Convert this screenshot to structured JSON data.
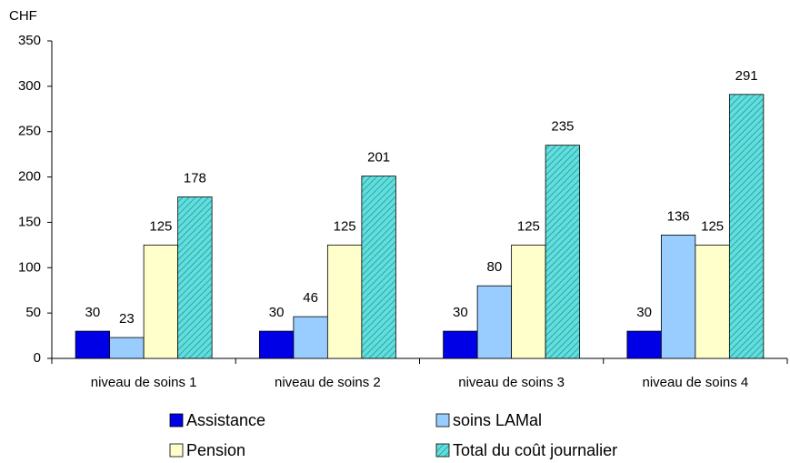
{
  "chart_data": {
    "type": "bar",
    "y_label": "CHF",
    "categories": [
      "niveau de soins 1",
      "niveau de soins 2",
      "niveau de soins 3",
      "niveau de soins 4"
    ],
    "series": [
      {
        "name": "Assistance",
        "color": "#0000e6",
        "values": [
          30,
          30,
          30,
          30
        ]
      },
      {
        "name": "soins LAMal",
        "color": "#99ccff",
        "values": [
          23,
          46,
          80,
          136
        ]
      },
      {
        "name": "Pension",
        "color": "#ffffcc",
        "values": [
          125,
          125,
          125,
          125
        ]
      },
      {
        "name": "Total du coût journalier",
        "color": "#33cccc",
        "hatched": true,
        "values": [
          178,
          201,
          235,
          291
        ]
      }
    ],
    "ylim": [
      0,
      350
    ],
    "yticks": [
      0,
      50,
      100,
      150,
      200,
      250,
      300,
      350
    ],
    "grid": false,
    "legend": "bottom"
  }
}
